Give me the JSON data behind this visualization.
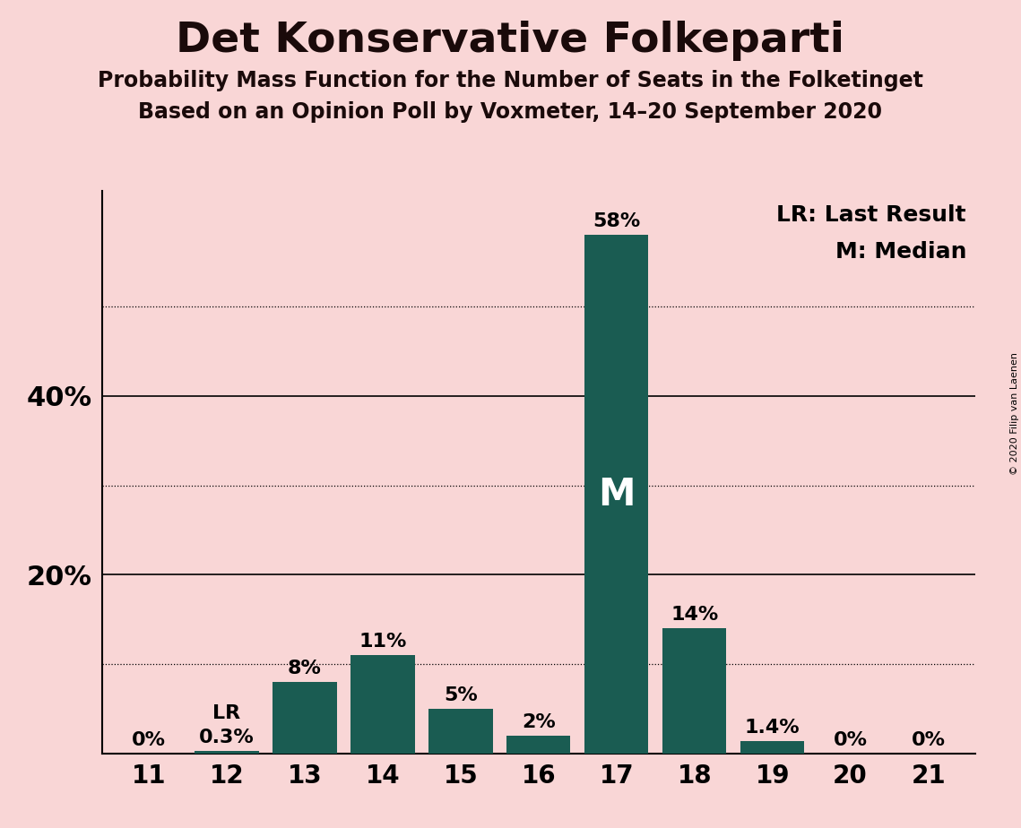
{
  "title": "Det Konservative Folkeparti",
  "subtitle1": "Probability Mass Function for the Number of Seats in the Folketinget",
  "subtitle2": "Based on an Opinion Poll by Voxmeter, 14–20 September 2020",
  "copyright": "© 2020 Filip van Laenen",
  "categories": [
    11,
    12,
    13,
    14,
    15,
    16,
    17,
    18,
    19,
    20,
    21
  ],
  "values": [
    0.0,
    0.3,
    8.0,
    11.0,
    5.0,
    2.0,
    58.0,
    14.0,
    1.4,
    0.0,
    0.0
  ],
  "labels": [
    "0%",
    "0.3%",
    "8%",
    "11%",
    "5%",
    "2%",
    "58%",
    "14%",
    "1.4%",
    "0%",
    "0%"
  ],
  "bar_color": "#1a5c52",
  "background_color": "#f9d6d6",
  "median_bar": 17,
  "lr_bar": 12,
  "ylim": [
    0,
    63
  ],
  "major_gridlines": [
    20,
    40
  ],
  "dotted_gridlines": [
    10,
    30,
    50
  ],
  "title_fontsize": 34,
  "subtitle_fontsize": 17,
  "label_fontsize": 16,
  "tick_fontsize": 20,
  "ytick_label_fontsize": 22,
  "m_fontsize": 30
}
